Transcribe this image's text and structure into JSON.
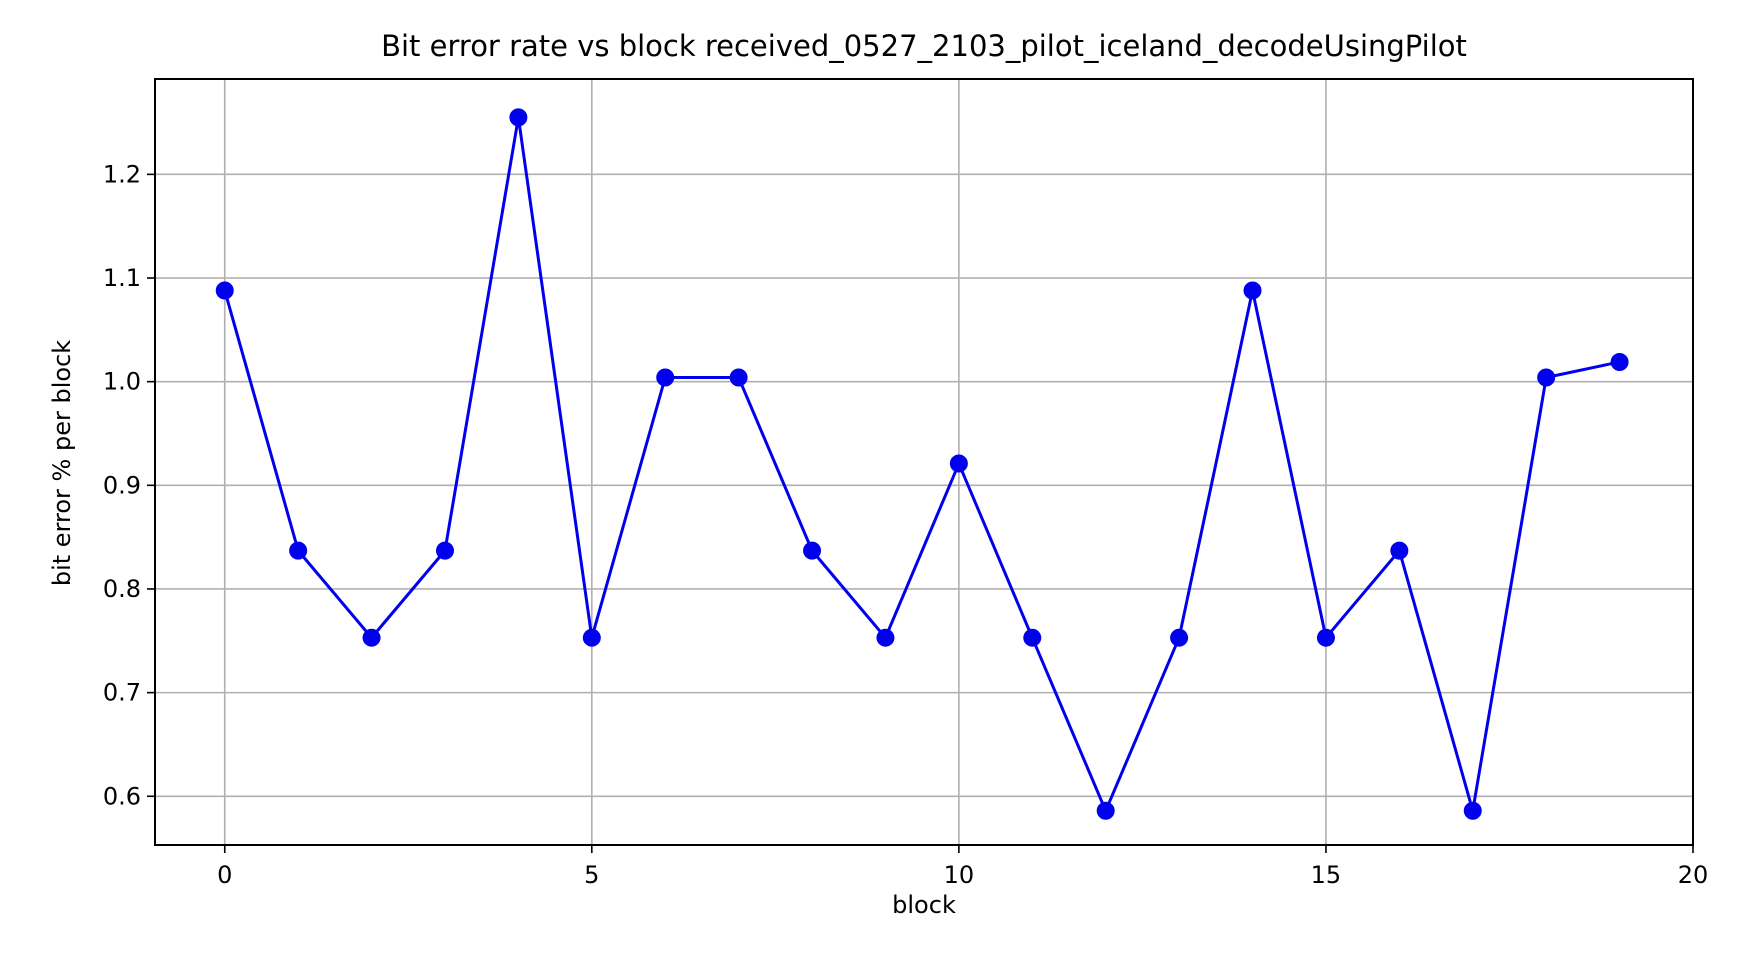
{
  "chart_data": {
    "type": "line",
    "title": "Bit error rate vs block received_0527_2103_pilot_iceland_decodeUsingPilot",
    "xlabel": "block",
    "ylabel": "bit error % per block",
    "xlim": [
      -0.95,
      20
    ],
    "ylim": [
      0.553,
      1.292
    ],
    "grid": true,
    "x_ticks": [
      0,
      5,
      10,
      15,
      20
    ],
    "y_ticks": [
      0.6,
      0.7,
      0.8,
      0.9,
      1.0,
      1.1,
      1.2
    ],
    "x_tick_labels": [
      "0",
      "5",
      "10",
      "15",
      "20"
    ],
    "y_tick_labels": [
      "0.6",
      "0.7",
      "0.8",
      "0.9",
      "1.0",
      "1.1",
      "1.2"
    ],
    "x": [
      0,
      1,
      2,
      3,
      4,
      5,
      6,
      7,
      8,
      9,
      10,
      11,
      12,
      13,
      14,
      15,
      16,
      17,
      18,
      19
    ],
    "series": [
      {
        "values": [
          1.088,
          0.837,
          0.753,
          0.837,
          1.255,
          0.753,
          1.004,
          1.004,
          0.837,
          0.753,
          0.921,
          0.753,
          0.586,
          0.753,
          1.088,
          0.753,
          0.837,
          0.586,
          1.004,
          1.019
        ],
        "color": "#0000ee",
        "marker": "circle"
      }
    ]
  }
}
